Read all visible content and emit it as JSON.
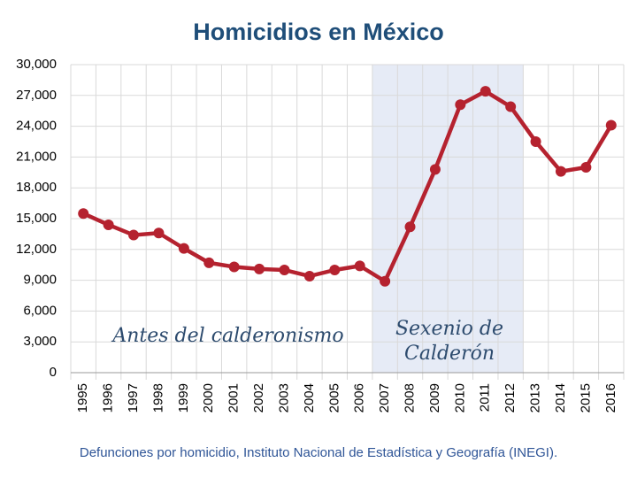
{
  "chart_data": {
    "type": "line",
    "title": "Homicidios en México",
    "footnote": "Defunciones por homicidio, Instituto Nacional de Estadística y Geografía (INEGI).",
    "categories": [
      "1995",
      "1996",
      "1997",
      "1998",
      "1999",
      "2000",
      "2001",
      "2002",
      "2003",
      "2004",
      "2005",
      "2006",
      "2007",
      "2008",
      "2009",
      "2010",
      "2011",
      "2012",
      "2013",
      "2014",
      "2015",
      "2016"
    ],
    "series": [
      {
        "color": "#b5222f",
        "values": [
          15500,
          14400,
          13400,
          13600,
          12100,
          10700,
          10300,
          10100,
          10000,
          9400,
          10000,
          10400,
          8900,
          14200,
          19800,
          26100,
          27400,
          25900,
          22500,
          19600,
          20000,
          24100
        ]
      }
    ],
    "ylim": [
      0,
      30000
    ],
    "yticks": [
      0,
      {
        "value": 3000,
        "label": "3,000"
      },
      {
        "value": 6000,
        "label": "6,000"
      },
      {
        "value": 9000,
        "label": "9,000"
      },
      {
        "value": 12000,
        "label": "12,000"
      },
      {
        "value": 15000,
        "label": "15,000"
      },
      {
        "value": 18000,
        "label": "18,000"
      },
      {
        "value": 21000,
        "label": "21,000"
      },
      {
        "value": 24000,
        "label": "24,000"
      },
      {
        "value": 27000,
        "label": "27,000"
      },
      {
        "value": 30000,
        "label": "30,000"
      }
    ],
    "grid": true,
    "highlight": {
      "from": "2007",
      "to": "2012",
      "color": "#e6ebf6"
    },
    "annotations": [
      "Antes del calderonismo",
      "Sexenio de",
      "Calderón"
    ]
  }
}
